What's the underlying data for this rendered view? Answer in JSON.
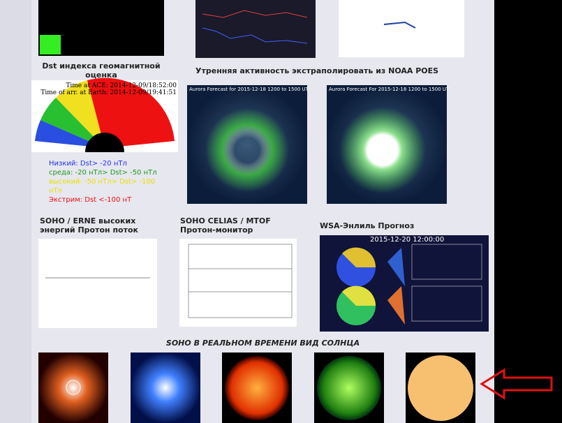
{
  "dst": {
    "title": "Dst индекса геомагнитной оценка",
    "time_ace": "Time at ACE:  2014-12-09/18:52:00",
    "time_arrival": "Time of arr. at Earth:  2014-12-09/19:41:51",
    "levels": [
      "Низкий: Dst> -20 нТл",
      "среда: -20 нТл> Dst> -50 нТл",
      "высокий: -50 нТл> Dst> -100 нТл",
      "Экстрим: Dst <-100 нТ"
    ]
  },
  "aurora": {
    "title": "Утренняя активность экстраполировать из NOAA POES",
    "images": [
      "Aurora Forecast for 2015-12-18 1200 to 1500 UT",
      "Aurora Forecast For 2015-12-18 1200 to 1500 UT"
    ]
  },
  "panels": [
    "SOHO / ERNE высоких энергий Протон поток",
    "SOHO CELIAS / MTOF Протон-монитор",
    "WSA-Энлиль Прогноз"
  ],
  "wsa_timestamp": "2015-12-20 12:00:00",
  "sun_title": "SOHO В РЕАЛЬНОМ ВРЕМЕНИ ВИД СОЛНЦА"
}
